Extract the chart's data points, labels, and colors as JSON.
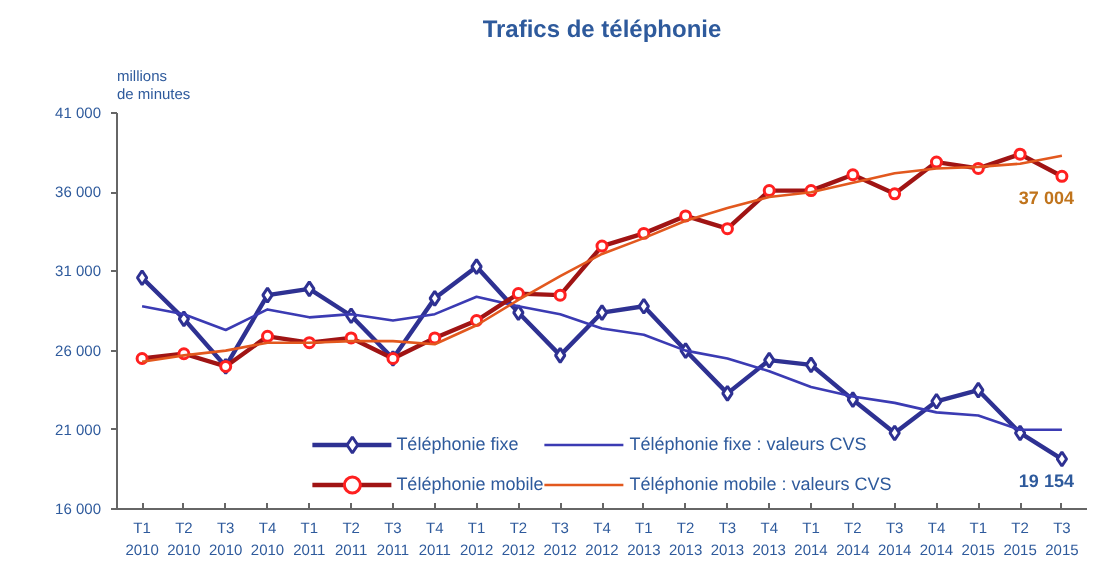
{
  "chart_data": {
    "type": "line",
    "title": "Trafics de téléphonie",
    "ylabel": "millions\nde minutes",
    "categories": [
      "T1\n2010",
      "T2\n2010",
      "T3\n2010",
      "T4\n2010",
      "T1\n2011",
      "T2\n2011",
      "T3\n2011",
      "T4\n2011",
      "T1\n2012",
      "T2\n2012",
      "T3\n2012",
      "T4\n2012",
      "T1\n2013",
      "T2\n2013",
      "T3\n2013",
      "T4\n2013",
      "T1\n2014",
      "T2\n2014",
      "T3\n2014",
      "T4\n2014",
      "T1\n2015",
      "T2\n2015",
      "T3\n2015"
    ],
    "series": [
      {
        "name": "Téléphonie fixe",
        "color": "#2e3192",
        "marker": "diamond",
        "values": [
          30600,
          28000,
          25000,
          29500,
          29900,
          28200,
          25500,
          29300,
          31300,
          28400,
          25700,
          28400,
          28800,
          26000,
          23300,
          25400,
          25100,
          22900,
          20800,
          22800,
          23500,
          20800,
          19154
        ]
      },
      {
        "name": "Téléphonie fixe : valeurs CVS",
        "color": "#3b3bb3",
        "marker": "none",
        "values": [
          28800,
          28300,
          27300,
          28600,
          28100,
          28300,
          27900,
          28300,
          29400,
          28800,
          28300,
          27400,
          27000,
          26000,
          25500,
          24700,
          23700,
          23100,
          22700,
          22100,
          21900,
          21000,
          21000
        ]
      },
      {
        "name": "Téléphonie mobile",
        "color": "#a01414",
        "marker": "circle",
        "values": [
          25500,
          25800,
          25000,
          26900,
          26500,
          26800,
          25500,
          26800,
          27900,
          29600,
          29500,
          32600,
          33400,
          34500,
          33700,
          36100,
          36100,
          37100,
          35900,
          37900,
          37500,
          38400,
          37004
        ]
      },
      {
        "name": "Téléphonie mobile : valeurs CVS",
        "color": "#e2581e",
        "marker": "none",
        "values": [
          25300,
          25700,
          26000,
          26500,
          26500,
          26600,
          26600,
          26400,
          27600,
          29200,
          30700,
          32100,
          33100,
          34200,
          35000,
          35700,
          36000,
          36600,
          37200,
          37500,
          37600,
          37800,
          38300
        ]
      }
    ],
    "ylim": [
      16000,
      41000
    ],
    "yticks": [
      {
        "value": 16000,
        "label": "16 000"
      },
      {
        "value": 21000,
        "label": "21 000"
      },
      {
        "value": 26000,
        "label": "26 000"
      },
      {
        "value": 31000,
        "label": "31 000"
      },
      {
        "value": 36000,
        "label": "36 000"
      },
      {
        "value": 41000,
        "label": "41 000"
      }
    ],
    "annotations": [
      {
        "text": "37 004",
        "x": "T3\n2015",
        "y": 37004
      },
      {
        "text": "19 154",
        "x": "T3\n2015",
        "y": 19154
      }
    ],
    "grid": false,
    "legend": "bottom",
    "line_style": "solid"
  }
}
